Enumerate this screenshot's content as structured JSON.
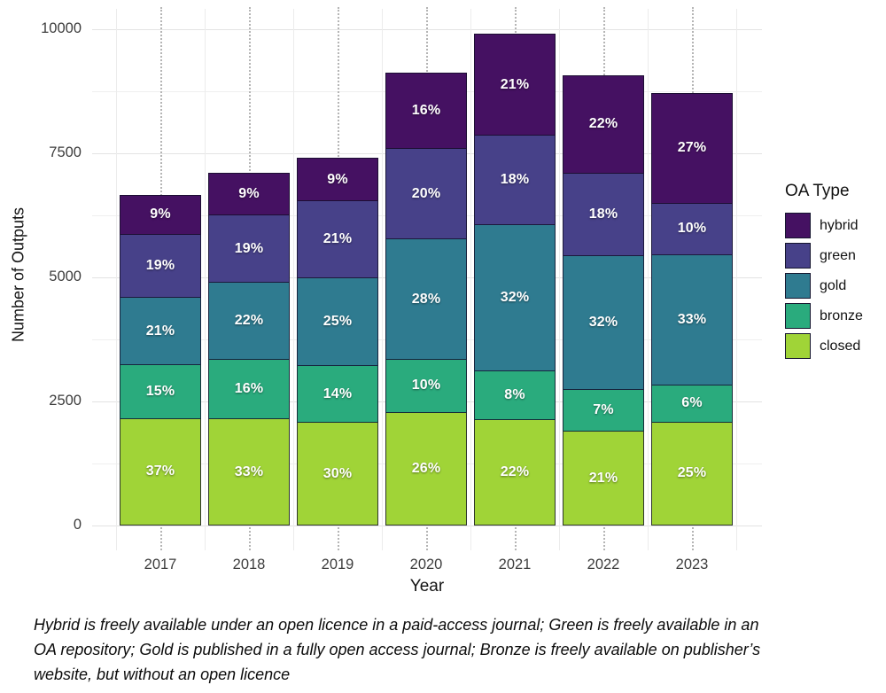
{
  "chart_data": {
    "type": "bar",
    "subtype": "stacked-vertical",
    "title": "",
    "xlabel": "Year",
    "ylabel": "Number of Outputs",
    "ylim": [
      0,
      10000
    ],
    "yticks": [
      0,
      2500,
      5000,
      7500,
      10000
    ],
    "ytick_labels": [
      "0",
      "2500",
      "5000",
      "7500",
      "10000"
    ],
    "yticks_minor": [
      1250,
      3750,
      6250,
      8750
    ],
    "grid": {
      "horizontal_major": true,
      "horizontal_minor": true,
      "vertical_dotted_at_bar_centers": true,
      "vertical_minor_between_bars": true
    },
    "categories": [
      "2017",
      "2018",
      "2019",
      "2020",
      "2021",
      "2022",
      "2023"
    ],
    "bar_totals_outputs": [
      6660,
      7105,
      7410,
      9125,
      9910,
      9070,
      8715
    ],
    "stack_order_top_to_bottom": [
      "hybrid",
      "green",
      "gold",
      "bronze",
      "closed"
    ],
    "labels_unit": "%",
    "series": [
      {
        "name": "hybrid",
        "color": "#451162",
        "percent": [
          9,
          9,
          9,
          16,
          21,
          22,
          27
        ]
      },
      {
        "name": "green",
        "color": "#474189",
        "percent": [
          19,
          19,
          21,
          20,
          18,
          18,
          10
        ]
      },
      {
        "name": "gold",
        "color": "#2f7b90",
        "percent": [
          21,
          22,
          25,
          28,
          32,
          32,
          33
        ]
      },
      {
        "name": "bronze",
        "color": "#2aab7d",
        "percent": [
          15,
          16,
          14,
          10,
          8,
          7,
          6
        ]
      },
      {
        "name": "closed",
        "color": "#a0d437",
        "percent": [
          37,
          33,
          30,
          26,
          22,
          21,
          25
        ]
      }
    ],
    "legend": {
      "title": "OA Type",
      "position": "right",
      "items": [
        "hybrid",
        "green",
        "gold",
        "bronze",
        "closed"
      ]
    }
  },
  "caption_lines": [
    "Hybrid is freely available under an open licence in a paid-access journal; Green is freely available in an",
    "OA repository; Gold is published in a fully open access journal; Bronze is freely available on publisher’s",
    "website, but without an open licence"
  ]
}
